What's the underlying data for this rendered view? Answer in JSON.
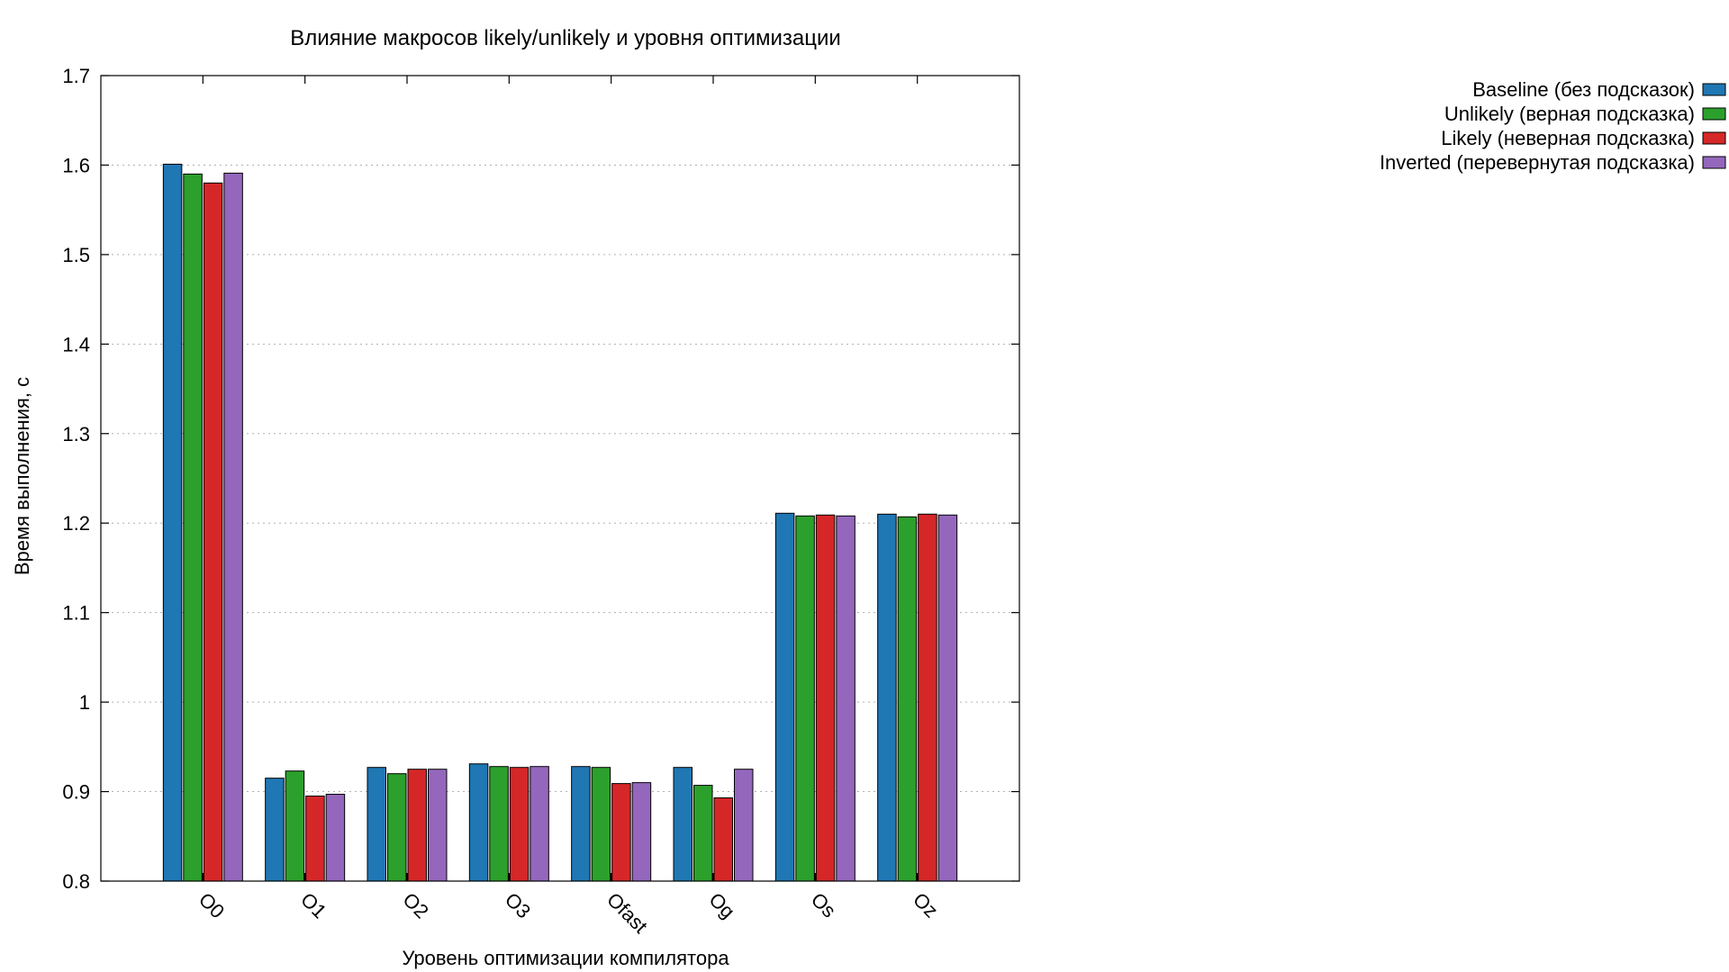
{
  "chart_data": {
    "type": "bar",
    "title": "Влияние макросов likely/unlikely и уровня оптимизации",
    "xlabel": "Уровень оптимизации компилятора",
    "ylabel": "Время выполнения, с",
    "categories": [
      "O0",
      "O1",
      "O2",
      "O3",
      "Ofast",
      "Og",
      "Os",
      "Oz"
    ],
    "ylim": [
      0.8,
      1.7
    ],
    "yticks": [
      "0.8",
      "0.9",
      "1",
      "1.1",
      "1.2",
      "1.3",
      "1.4",
      "1.5",
      "1.6",
      "1.7"
    ],
    "grid": true,
    "legend_position": "top-right",
    "series": [
      {
        "name": "Baseline (без подсказок)",
        "color": "#1f77b4",
        "values": [
          1.601,
          0.915,
          0.927,
          0.931,
          0.928,
          0.927,
          1.211,
          1.21
        ]
      },
      {
        "name": "Unlikely (верная подсказка)",
        "color": "#2ca02c",
        "values": [
          1.59,
          0.923,
          0.92,
          0.928,
          0.927,
          0.907,
          1.208,
          1.207
        ]
      },
      {
        "name": "Likely (неверная подсказка)",
        "color": "#d62728",
        "values": [
          1.58,
          0.895,
          0.925,
          0.927,
          0.909,
          0.893,
          1.209,
          1.21
        ]
      },
      {
        "name": "Inverted (перевернутая подсказка)",
        "color": "#9467bd",
        "values": [
          1.591,
          0.897,
          0.925,
          0.928,
          0.91,
          0.925,
          1.208,
          1.209
        ]
      }
    ]
  }
}
